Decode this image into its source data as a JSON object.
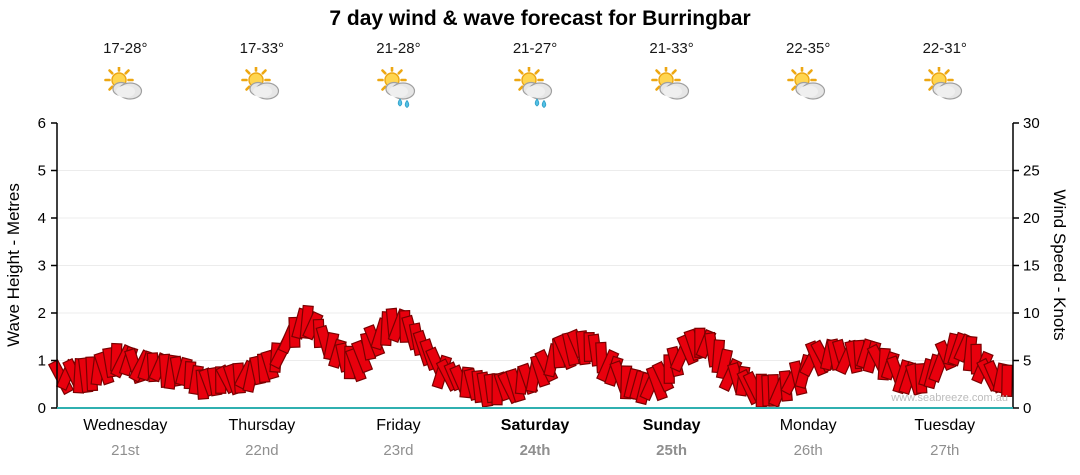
{
  "title": "7 day wind & wave forecast for Burringbar",
  "watermark": "www.seabreeze.com.au",
  "left_axis": {
    "label": "Wave Height - Metres",
    "ticks": [
      "0",
      "1",
      "2",
      "3",
      "4",
      "5",
      "6"
    ]
  },
  "right_axis": {
    "label": "Wind Speed - Knots",
    "ticks": [
      "0",
      "5",
      "10",
      "15",
      "20",
      "25",
      "30"
    ]
  },
  "days": [
    {
      "name": "Wednesday",
      "date": "21st",
      "temp": "17-28°",
      "icon": "sun-cloud",
      "bold": false
    },
    {
      "name": "Thursday",
      "date": "22nd",
      "temp": "17-33°",
      "icon": "sun-cloud",
      "bold": false
    },
    {
      "name": "Friday",
      "date": "23rd",
      "temp": "21-28°",
      "icon": "sun-cloud-rain",
      "bold": false
    },
    {
      "name": "Saturday",
      "date": "24th",
      "temp": "21-27°",
      "icon": "sun-cloud-rain",
      "bold": true
    },
    {
      "name": "Sunday",
      "date": "25th",
      "temp": "21-33°",
      "icon": "sun-cloud",
      "bold": true
    },
    {
      "name": "Monday",
      "date": "26th",
      "temp": "22-35°",
      "icon": "sun-cloud",
      "bold": false
    },
    {
      "name": "Tuesday",
      "date": "27th",
      "temp": "22-31°",
      "icon": "sun-cloud",
      "bold": false
    }
  ],
  "chart_data": {
    "type": "area",
    "title": "7 day wind & wave forecast for Burringbar",
    "categories": [
      "Wednesday 21st",
      "Thursday 22nd",
      "Friday 23rd",
      "Saturday 24th",
      "Sunday 25th",
      "Monday 26th",
      "Tuesday 27th"
    ],
    "samples_per_day": 8,
    "series": [
      {
        "name": "Wind Speed",
        "unit": "knots",
        "axis": "right",
        "values": [
          5.0,
          5.2,
          5.5,
          6.8,
          6.2,
          5.8,
          5.6,
          5.2,
          4.0,
          4.3,
          4.6,
          5.2,
          6.0,
          8.5,
          11.0,
          9.0,
          7.0,
          6.2,
          8.5,
          10.5,
          10.2,
          8.0,
          5.5,
          4.5,
          4.0,
          3.5,
          3.8,
          4.5,
          5.8,
          7.5,
          8.2,
          7.8,
          5.5,
          4.2,
          3.6,
          4.8,
          7.0,
          8.5,
          7.8,
          5.0,
          4.0,
          3.4,
          3.6,
          5.0,
          7.0,
          7.2,
          7.0,
          7.2,
          6.2,
          5.0,
          4.5,
          5.8,
          8.0,
          7.5,
          5.2,
          4.5
        ]
      }
    ],
    "ylabel_left": "Wave Height - Metres",
    "ylim_left": [
      0,
      6
    ],
    "ylabel_right": "Wind Speed - Knots",
    "ylim_right": [
      0,
      30
    ],
    "grid": "light horizontal",
    "legend": "none"
  },
  "colors": {
    "flag_fill": "#e8000d",
    "flag_stroke": "#7a0000",
    "axis": "#000000",
    "baseline": "#2fb0b0",
    "grid": "#ececec",
    "date_text": "#8f8f8f",
    "watermark": "#bcbcbc"
  }
}
